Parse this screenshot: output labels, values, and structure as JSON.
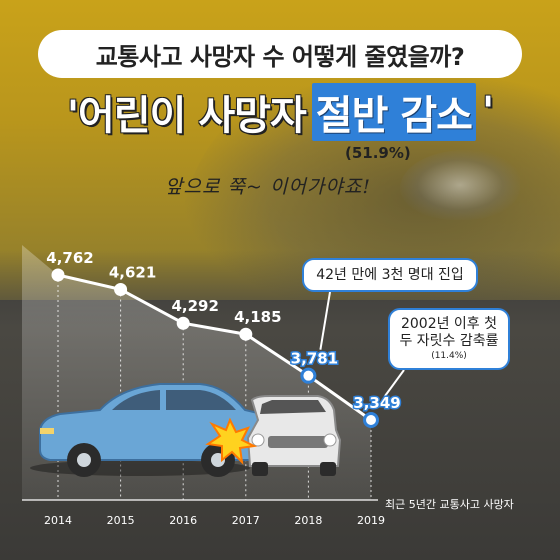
{
  "title": "교통사고 사망자 수 어떻게 줄였을까?",
  "headline": {
    "prefix": "'어린이 사망자",
    "highlight": "절반 감소",
    "suffix": "'"
  },
  "percent_note": "(51.9%)",
  "handwritten_note": "앞으로 쭉~ 이어가야죠!",
  "callouts": {
    "c1": "42년 만에 3천 명대 진입",
    "c2_line1": "2002년 이후 첫",
    "c2_line2": "두 자릿수 감축률",
    "c2_line3": "(11.4%)"
  },
  "source": "최근 5년간 교통사고 사망자",
  "colors": {
    "accent": "#2f80d8",
    "line": "#ffffff",
    "car_blue": "#6aa6d6",
    "car_white": "#e8e8e8"
  },
  "chart_data": {
    "type": "line",
    "categories": [
      "2014",
      "2015",
      "2016",
      "2017",
      "2018",
      "2019"
    ],
    "values": [
      4762,
      4621,
      4292,
      4185,
      3781,
      3349
    ],
    "labels": [
      "4,762",
      "4,621",
      "4,292",
      "4,185",
      "3,781",
      "3,349"
    ],
    "highlighted": [
      false,
      false,
      false,
      false,
      true,
      true
    ],
    "title": "",
    "xlabel": "",
    "ylabel": "",
    "ylim": [
      2800,
      5000
    ],
    "grid": "vertical dashed"
  }
}
